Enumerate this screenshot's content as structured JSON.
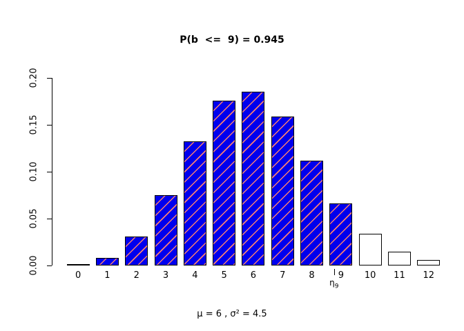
{
  "chart_data": {
    "type": "bar",
    "title": "P(b  <=  9) = 0.945",
    "footnote": "μ = 6 ,  σ² = 4.5",
    "categories": [
      "0",
      "1",
      "2",
      "3",
      "4",
      "5",
      "6",
      "7",
      "8",
      "9",
      "10",
      "11",
      "12"
    ],
    "values": [
      0.001,
      0.008,
      0.031,
      0.075,
      0.132,
      0.176,
      0.185,
      0.159,
      0.112,
      0.066,
      0.034,
      0.015,
      0.006
    ],
    "xlabel": "",
    "ylabel": "",
    "ylim": [
      0,
      0.2
    ],
    "yticks": [
      "0.00",
      "0.05",
      "0.10",
      "0.15",
      "0.20"
    ],
    "grid": false,
    "legend": "none",
    "filled_max_category": 9,
    "annotation": {
      "x": 9,
      "tick": "|",
      "symbol": "η",
      "subscript": "9"
    },
    "colors": {
      "bar_fill": "#0000ee",
      "hatch": "#fa8072",
      "bar_empty": "#ffffff",
      "border": "#000000"
    }
  }
}
